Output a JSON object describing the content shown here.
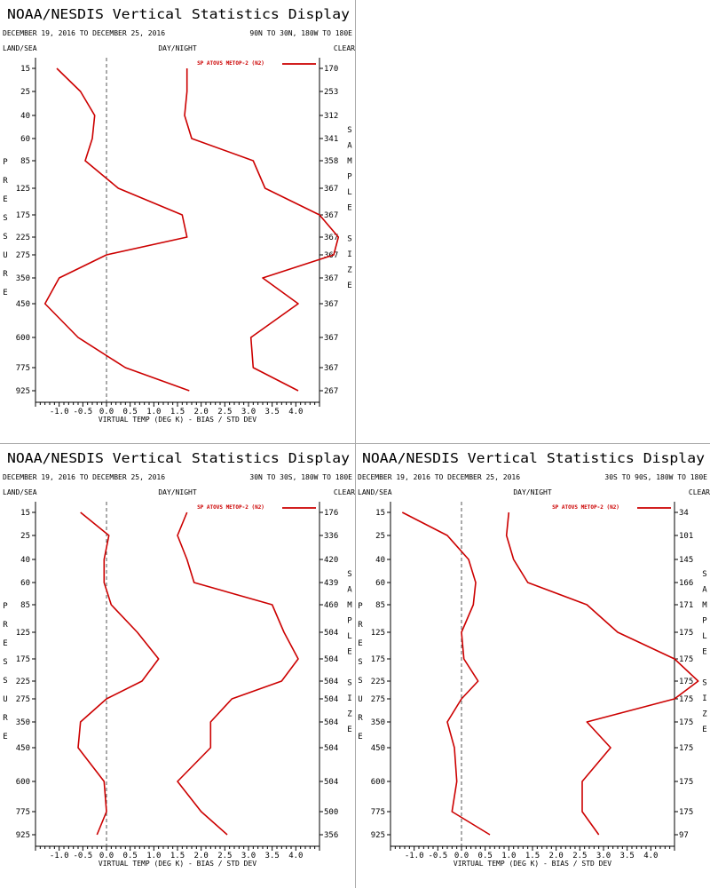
{
  "chart_data": [
    {
      "type": "line",
      "title": "NOAA/NESDIS Vertical Statistics Display",
      "date_range": "DECEMBER 19, 2016 TO DECEMBER 25, 2016",
      "region": "90N TO 30N, 180W TO 180E",
      "left_label": "LAND/SEA",
      "center_label": "DAY/NIGHT",
      "right_label": "CLEAR",
      "ylabel": "PRESSURE",
      "ylabel_right": "SAMPLE SIZE",
      "xlabel": "VIRTUAL TEMP (DEG K) - BIAS / STD DEV",
      "xlim": [
        -1.5,
        4.5
      ],
      "x_ticks": [
        "-1.0",
        "-0.5",
        "0.0",
        "0.5",
        "1.0",
        "1.5",
        "2.0",
        "2.5",
        "3.0",
        "3.5",
        "4.0"
      ],
      "pressure_levels": [
        "15",
        "25",
        "40",
        "60",
        "85",
        "125",
        "175",
        "225",
        "275",
        "350",
        "450",
        "600",
        "775",
        "925"
      ],
      "sample_sizes": [
        "170",
        "253",
        "312",
        "341",
        "358",
        "367",
        "367",
        "367",
        "367",
        "367",
        "367",
        "367",
        "367",
        "267"
      ],
      "legend": "SP ATOVS METOP-2 (N2)",
      "series": [
        {
          "label": "bias",
          "values": [
            -1.05,
            -0.55,
            -0.25,
            -0.3,
            -0.45,
            0.25,
            1.6,
            1.7,
            0.0,
            -1.0,
            -1.3,
            -0.6,
            0.4,
            1.75
          ]
        },
        {
          "label": "std_dev",
          "values": [
            1.7,
            1.7,
            1.65,
            1.8,
            3.1,
            3.35,
            4.5,
            4.9,
            4.8,
            3.3,
            4.05,
            3.05,
            3.1,
            4.05
          ]
        }
      ]
    },
    {
      "type": "line",
      "title": "NOAA/NESDIS Vertical Statistics Display",
      "date_range": "DECEMBER 19, 2016 TO DECEMBER 25, 2016",
      "region": "30N TO 30S, 180W TO 180E",
      "left_label": "LAND/SEA",
      "center_label": "DAY/NIGHT",
      "right_label": "CLEAR",
      "ylabel": "PRESSURE",
      "ylabel_right": "SAMPLE SIZE",
      "xlabel": "VIRTUAL TEMP (DEG K) - BIAS / STD DEV",
      "xlim": [
        -1.5,
        4.5
      ],
      "x_ticks": [
        "-1.0",
        "-0.5",
        "0.0",
        "0.5",
        "1.0",
        "1.5",
        "2.0",
        "2.5",
        "3.0",
        "3.5",
        "4.0"
      ],
      "pressure_levels": [
        "15",
        "25",
        "40",
        "60",
        "85",
        "125",
        "175",
        "225",
        "275",
        "350",
        "450",
        "600",
        "775",
        "925"
      ],
      "sample_sizes": [
        "176",
        "336",
        "420",
        "439",
        "460",
        "504",
        "504",
        "504",
        "504",
        "504",
        "504",
        "504",
        "500",
        "356"
      ],
      "legend": "SP ATOVS METOP-2 (N2)",
      "series": [
        {
          "label": "bias",
          "values": [
            -0.55,
            0.05,
            -0.05,
            -0.05,
            0.1,
            0.65,
            1.1,
            0.75,
            0.0,
            -0.55,
            -0.6,
            -0.05,
            0.0,
            -0.2
          ]
        },
        {
          "label": "std_dev",
          "values": [
            1.7,
            1.5,
            1.7,
            1.85,
            3.5,
            3.75,
            4.05,
            3.7,
            2.65,
            2.2,
            2.2,
            1.5,
            2.0,
            2.55
          ]
        }
      ]
    },
    {
      "type": "line",
      "title": "NOAA/NESDIS Vertical Statistics Display",
      "date_range": "DECEMBER 19, 2016 TO DECEMBER 25, 2016",
      "region": "30S TO 90S, 180W TO 180E",
      "left_label": "LAND/SEA",
      "center_label": "DAY/NIGHT",
      "right_label": "CLEAR",
      "ylabel": "PRESSURE",
      "ylabel_right": "SAMPLE SIZE",
      "xlabel": "VIRTUAL TEMP (DEG K) - BIAS / STD DEV",
      "xlim": [
        -1.5,
        4.5
      ],
      "x_ticks": [
        "-1.0",
        "-0.5",
        "0.0",
        "0.5",
        "1.0",
        "1.5",
        "2.0",
        "2.5",
        "3.0",
        "3.5",
        "4.0"
      ],
      "pressure_levels": [
        "15",
        "25",
        "40",
        "60",
        "85",
        "125",
        "175",
        "225",
        "275",
        "350",
        "450",
        "600",
        "775",
        "925"
      ],
      "sample_sizes": [
        "34",
        "101",
        "145",
        "166",
        "171",
        "175",
        "175",
        "175",
        "175",
        "175",
        "175",
        "175",
        "175",
        "97"
      ],
      "legend": "SP ATOVS METOP-2 (N2)",
      "series": [
        {
          "label": "bias",
          "values": [
            -1.25,
            -0.3,
            0.15,
            0.3,
            0.25,
            0.0,
            0.05,
            0.35,
            0.0,
            -0.3,
            -0.15,
            -0.1,
            -0.2,
            0.6
          ]
        },
        {
          "label": "std_dev",
          "values": [
            1.0,
            0.95,
            1.1,
            1.4,
            2.65,
            3.3,
            4.5,
            5.0,
            4.5,
            2.65,
            3.15,
            2.55,
            2.55,
            2.9
          ]
        }
      ]
    }
  ]
}
